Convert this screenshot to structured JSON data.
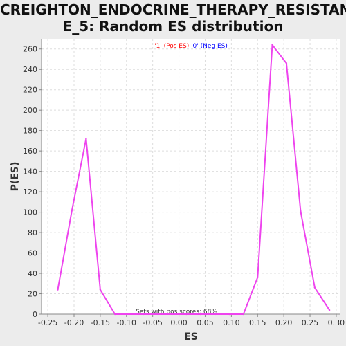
{
  "chart_data": {
    "type": "line",
    "title_lines": [
      "CREIGHTON_ENDOCRINE_THERAPY_RESISTANC",
      "E_5: Random ES distribution"
    ],
    "xlabel": "ES",
    "ylabel": "P(ES)",
    "legend": {
      "placement": "top-center",
      "parts": [
        {
          "text": "'1' (",
          "color": "#ff0000"
        },
        {
          "text": "Pos ES",
          "color": "#ff0000"
        },
        {
          "text": ") ",
          "color": "#ff0000"
        },
        {
          "text": "'0' (Neg ES)",
          "color": "#0000ff"
        }
      ]
    },
    "annotation": "Sets with pos scores: 68%",
    "xlim": [
      -0.262,
      0.308
    ],
    "ylim": [
      0,
      270
    ],
    "x_ticks": [
      -0.25,
      -0.2,
      -0.15,
      -0.1,
      -0.05,
      0.0,
      0.05,
      0.1,
      0.15,
      0.2,
      0.25,
      0.3
    ],
    "x_tick_labels": [
      "-0.25",
      "-0.20",
      "-0.15",
      "-0.10",
      "-0.05",
      "0.00",
      "0.05",
      "0.10",
      "0.15",
      "0.20",
      "0.25",
      "0.30"
    ],
    "y_ticks": [
      0,
      20,
      40,
      60,
      80,
      100,
      120,
      140,
      160,
      180,
      200,
      220,
      240,
      260
    ],
    "y_tick_labels": [
      "0",
      "20",
      "40",
      "60",
      "80",
      "100",
      "120",
      "140",
      "160",
      "180",
      "200",
      "220",
      "240",
      "260"
    ],
    "grid": true,
    "series": [
      {
        "color": "#ee44ee",
        "x": [
          -0.231,
          -0.204,
          -0.177,
          -0.15,
          -0.122,
          -0.095,
          -0.068,
          -0.04,
          -0.013,
          0.014,
          0.041,
          0.069,
          0.096,
          0.123,
          0.15,
          0.178,
          0.205,
          0.232,
          0.259,
          0.287
        ],
        "y": [
          24,
          102,
          172,
          24,
          0,
          0,
          0,
          0,
          0,
          0,
          0,
          0,
          0,
          0,
          36,
          264,
          246,
          101,
          26,
          4
        ]
      }
    ]
  }
}
